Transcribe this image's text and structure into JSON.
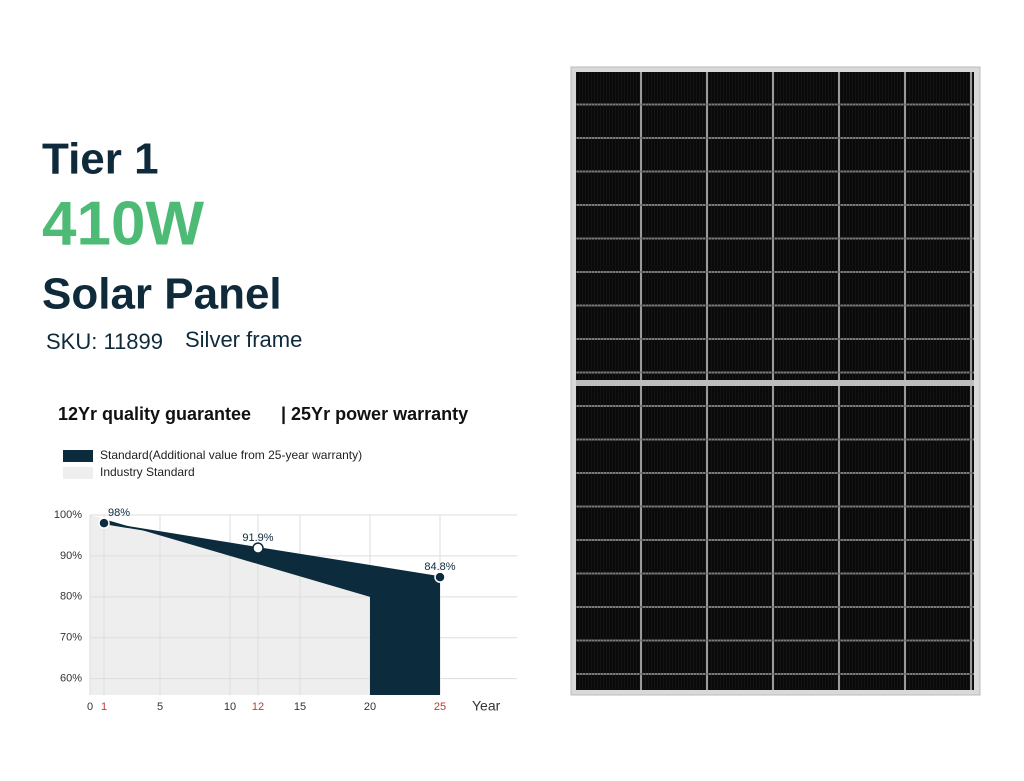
{
  "product": {
    "tier": "Tier 1",
    "power": "410W",
    "name": "Solar Panel",
    "sku": "SKU: 11899",
    "frame": "Silver frame"
  },
  "warranty": {
    "quality": "12Yr quality guarantee",
    "power": "| 25Yr power warranty"
  },
  "chart_data": {
    "type": "area",
    "x_label": "Year",
    "xlim": [
      0,
      30.5
    ],
    "xticks": [
      0,
      1,
      5,
      10,
      12,
      15,
      20,
      25
    ],
    "ylim": [
      56,
      100
    ],
    "yticks": [
      {
        "value": 100,
        "label": "100%"
      },
      {
        "value": 90,
        "label": "90%"
      },
      {
        "value": 80,
        "label": "80%"
      },
      {
        "value": 70,
        "label": "70%"
      },
      {
        "value": 60,
        "label": "60%"
      }
    ],
    "grid": true,
    "highlight_color": "#c0392b",
    "series": [
      {
        "name": "Standard(Additional value from 25-year warranty)",
        "color": "#0c2b3d",
        "x": [
          1,
          12,
          25
        ],
        "values": [
          98,
          91.9,
          84.8
        ],
        "value_labels": [
          "98%",
          "91.9%",
          "84.8%"
        ]
      },
      {
        "name": "Industry Standard",
        "color": "#eeeeee",
        "x": [
          0,
          10,
          20
        ],
        "values": [
          100,
          90,
          80
        ]
      }
    ]
  }
}
